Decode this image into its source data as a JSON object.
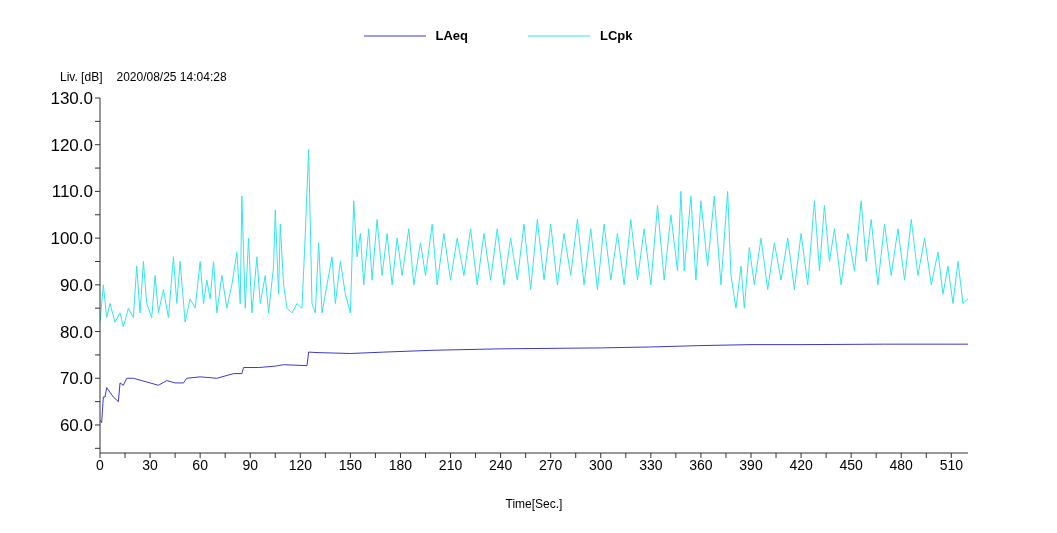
{
  "chart_data": {
    "type": "line",
    "xlabel": "Time[Sec.]",
    "ylabel": "Liv. [dB]",
    "annotations": [
      "2020/08/25 14:04:28"
    ],
    "xlim": [
      0,
      520
    ],
    "xticks": [
      0,
      {
        "value": 15,
        "label": null
      },
      30,
      {
        "value": 45,
        "label": null
      },
      60,
      {
        "value": 75,
        "label": null
      },
      90,
      {
        "value": 105,
        "label": null
      },
      120,
      {
        "value": 135,
        "label": null
      },
      150,
      {
        "value": 165,
        "label": null
      },
      180,
      {
        "value": 195,
        "label": null
      },
      210,
      {
        "value": 225,
        "label": null
      },
      240,
      {
        "value": 255,
        "label": null
      },
      270,
      {
        "value": 285,
        "label": null
      },
      300,
      {
        "value": 315,
        "label": null
      },
      330,
      {
        "value": 345,
        "label": null
      },
      360,
      {
        "value": 375,
        "label": null
      },
      390,
      {
        "value": 405,
        "label": null
      },
      420,
      {
        "value": 435,
        "label": null
      },
      450,
      {
        "value": 465,
        "label": null
      },
      480,
      {
        "value": 495,
        "label": null
      },
      510
    ],
    "ylim": [
      54,
      130
    ],
    "yticks": [
      {
        "value": 55,
        "label": null
      },
      {
        "value": 60,
        "label": "60.0"
      },
      {
        "value": 65,
        "label": null
      },
      {
        "value": 70,
        "label": "70.0"
      },
      {
        "value": 75,
        "label": null
      },
      {
        "value": 80,
        "label": "80.0"
      },
      {
        "value": 85,
        "label": null
      },
      {
        "value": 90,
        "label": "90.0"
      },
      {
        "value": 95,
        "label": null
      },
      {
        "value": 100,
        "label": "100.0"
      },
      {
        "value": 105,
        "label": null
      },
      {
        "value": 110,
        "label": "110.0"
      },
      {
        "value": 115,
        "label": null
      },
      {
        "value": 120,
        "label": "120.0"
      },
      {
        "value": 125,
        "label": null
      },
      {
        "value": 130,
        "label": "130.0"
      }
    ],
    "grid": false,
    "legend": "top",
    "marker": "none",
    "line_style": "solid",
    "series": [
      {
        "name": "LAeq",
        "color": "#3a3acc",
        "x": [
          0,
          1,
          2,
          3,
          4,
          6,
          8,
          11,
          12,
          14,
          16,
          20,
          25,
          30,
          35,
          40,
          45,
          50,
          52,
          60,
          70,
          75,
          80,
          85,
          86,
          95,
          105,
          110,
          124,
          125,
          130,
          150,
          170,
          200,
          240,
          300,
          330,
          360,
          390,
          420,
          470,
          520
        ],
        "values": [
          61,
          60.5,
          66,
          66,
          68,
          67,
          66,
          65,
          69,
          68.5,
          70,
          70,
          69.5,
          69,
          68.5,
          69.5,
          69,
          69,
          70,
          70.3,
          70,
          70.5,
          71,
          71,
          72.3,
          72.3,
          72.6,
          72.9,
          72.7,
          75.6,
          75.5,
          75.3,
          75.6,
          76,
          76.3,
          76.5,
          76.7,
          77,
          77.2,
          77.2,
          77.3,
          77.3
        ]
      },
      {
        "name": "LCpk",
        "color": "#33e6e6",
        "x": [
          0,
          2,
          4,
          6,
          9,
          12,
          14,
          17,
          20,
          22,
          24,
          26,
          28,
          31,
          33,
          35,
          38,
          41,
          44,
          46,
          48,
          51,
          54,
          57,
          60,
          62,
          64,
          66,
          68,
          70,
          73,
          76,
          79,
          82,
          84,
          85,
          87,
          89,
          91,
          94,
          96,
          99,
          101,
          104,
          105,
          107,
          108,
          110,
          112,
          115,
          118,
          121,
          123,
          125,
          127,
          129,
          131,
          133,
          136,
          139,
          141,
          144,
          147,
          150,
          152,
          154,
          156,
          158,
          161,
          163,
          166,
          169,
          172,
          175,
          178,
          181,
          185,
          188,
          192,
          195,
          199,
          202,
          206,
          210,
          214,
          218,
          222,
          226,
          230,
          234,
          238,
          242,
          246,
          250,
          254,
          258,
          262,
          266,
          270,
          274,
          278,
          282,
          286,
          290,
          294,
          298,
          302,
          306,
          310,
          314,
          318,
          322,
          326,
          330,
          334,
          338,
          342,
          346,
          348,
          350,
          354,
          357,
          360,
          364,
          368,
          372,
          376,
          378,
          381,
          384,
          386,
          389,
          392,
          396,
          400,
          404,
          408,
          412,
          416,
          420,
          424,
          428,
          431,
          434,
          437,
          440,
          444,
          448,
          452,
          456,
          459,
          462,
          466,
          470,
          474,
          478,
          482,
          486,
          490,
          494,
          498,
          502,
          505,
          508,
          511,
          514,
          517,
          520
        ],
        "values": [
          82,
          90,
          83,
          86,
          82,
          84,
          81,
          85,
          83,
          94,
          84,
          95,
          86,
          83,
          92,
          84,
          89,
          83,
          96,
          86,
          95,
          82,
          87,
          85,
          95,
          86,
          91,
          87,
          95,
          84,
          92,
          85,
          90,
          97,
          86,
          109,
          85,
          100,
          84,
          96,
          86,
          92,
          84,
          94,
          106,
          88,
          103,
          90,
          85,
          84,
          86,
          85,
          101,
          119,
          86,
          84,
          99,
          84,
          90,
          96,
          86,
          95,
          88,
          84,
          108,
          96,
          101,
          90,
          102,
          91,
          104,
          92,
          101,
          90,
          100,
          92,
          102,
          90,
          99,
          92,
          103,
          90,
          101,
          91,
          100,
          92,
          102,
          90,
          101,
          91,
          102,
          90,
          100,
          91,
          103,
          89,
          104,
          91,
          103,
          90,
          101,
          92,
          104,
          90,
          102,
          89,
          103,
          91,
          101,
          90,
          104,
          91,
          102,
          90,
          107,
          91,
          105,
          93,
          110,
          93,
          109,
          91,
          108,
          94,
          109,
          90,
          110,
          92,
          85,
          94,
          85,
          98,
          90,
          100,
          89,
          99,
          91,
          100,
          89,
          101,
          90,
          108,
          93,
          107,
          95,
          102,
          90,
          101,
          93,
          108,
          95,
          104,
          90,
          103,
          92,
          102,
          91,
          104,
          92,
          100,
          90,
          97,
          88,
          94,
          86,
          95,
          86,
          87
        ]
      }
    ]
  }
}
